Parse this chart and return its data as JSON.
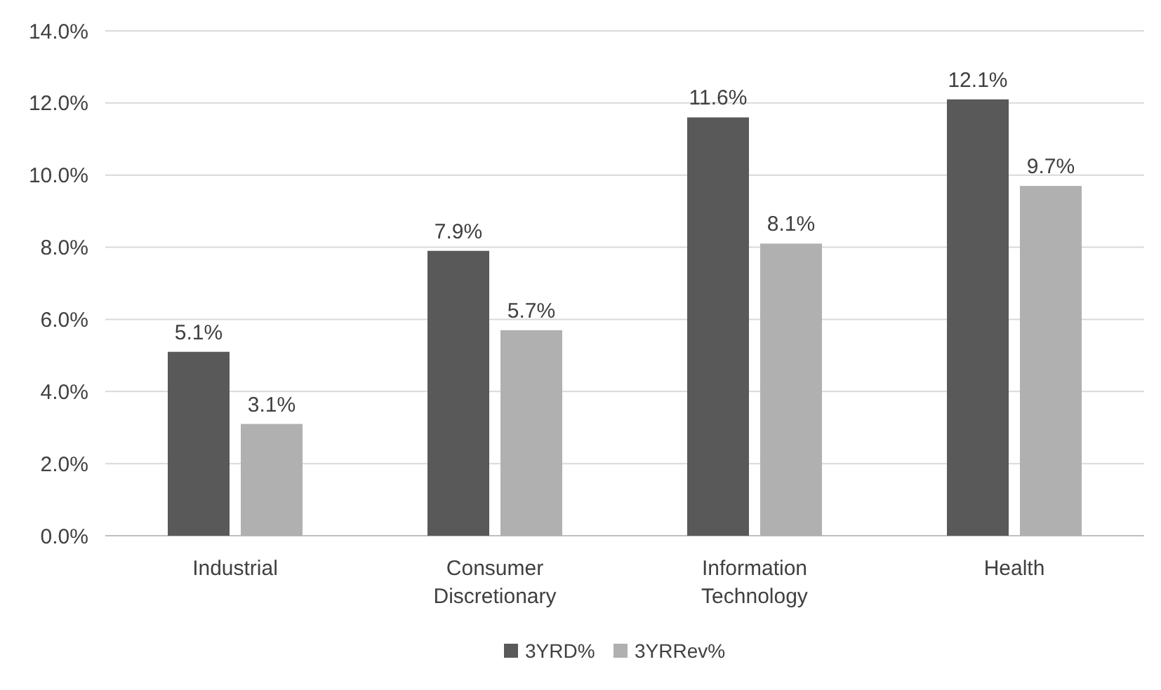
{
  "chart_data": {
    "type": "bar",
    "categories": [
      "Industrial",
      "Consumer Discretionary",
      "Information Technology",
      "Health"
    ],
    "series": [
      {
        "name": "3YRD%",
        "color": "#595959",
        "values": [
          5.1,
          7.9,
          11.6,
          12.1
        ],
        "value_labels": [
          "5.1%",
          "7.9%",
          "11.6%",
          "12.1%"
        ]
      },
      {
        "name": "3YRRev%",
        "color": "#b0b0b0",
        "values": [
          3.1,
          5.7,
          8.1,
          9.7
        ],
        "value_labels": [
          "3.1%",
          "5.7%",
          "8.1%",
          "9.7%"
        ]
      }
    ],
    "ylim": [
      0,
      14
    ],
    "yticks": [
      {
        "value": 0,
        "label": "0.0%"
      },
      {
        "value": 2,
        "label": "2.0%"
      },
      {
        "value": 4,
        "label": "4.0%"
      },
      {
        "value": 6,
        "label": "6.0%"
      },
      {
        "value": 8,
        "label": "8.0%"
      },
      {
        "value": 10,
        "label": "10.0%"
      },
      {
        "value": 12,
        "label": "12.0%"
      },
      {
        "value": 14,
        "label": "14.0%"
      }
    ],
    "grid": "y",
    "legend": "bottom"
  }
}
